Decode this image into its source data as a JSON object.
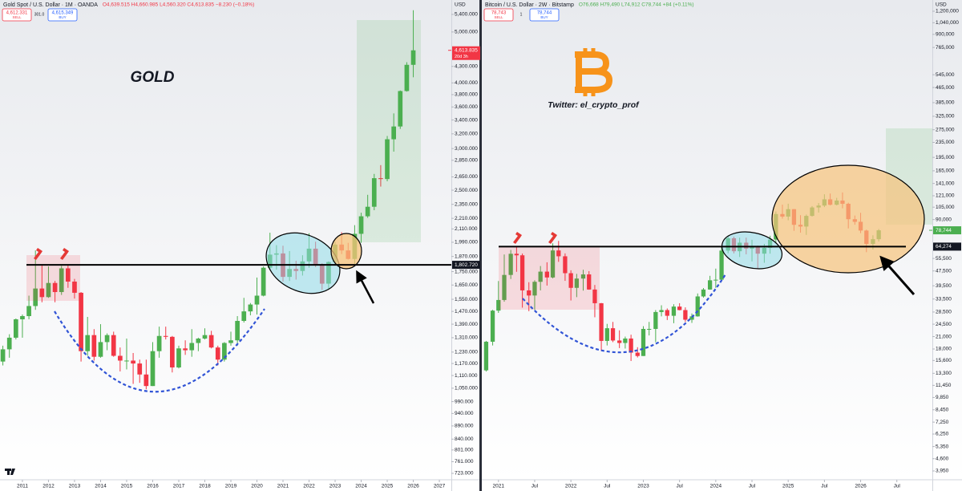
{
  "chart_data": [
    {
      "type": "candlestick",
      "title": "Gold Spot / U.S. Dollar · 1M · OANDA",
      "subtitle": "O4,639.515 H4,660.985 L4,560.320 C4,613.835 −8.230 (−0.18%)",
      "subtitle_color": "#f23645",
      "sell_price": "4,612.331",
      "sell_label": "SELL",
      "spread": "301.0",
      "buy_price": "4,615.349",
      "buy_label": "BUY",
      "currency": "USD",
      "annotation": "GOLD",
      "log_scale": true,
      "grid": false,
      "up_color": "#4caf50",
      "down_color": "#f23645",
      "xlim": [
        2010.14,
        2027.46
      ],
      "xticks": [
        2011,
        2012,
        2013,
        2014,
        2015,
        2016,
        2017,
        2018,
        2019,
        2020,
        2021,
        2022,
        2023,
        2024,
        2025,
        2026,
        2027
      ],
      "ylim": [
        703,
        5752
      ],
      "yticks": [
        {
          "value": 5400,
          "label": "5,400.000"
        },
        {
          "value": 5000,
          "label": "5,000.000"
        },
        {
          "value": 4300,
          "label": "4,300.000"
        },
        {
          "value": 4000,
          "label": "4,000.000"
        },
        {
          "value": 3800,
          "label": "3,800.000"
        },
        {
          "value": 3600,
          "label": "3,600.000"
        },
        {
          "value": 3400,
          "label": "3,400.000"
        },
        {
          "value": 3200,
          "label": "3,200.000"
        },
        {
          "value": 3000,
          "label": "3,000.000"
        },
        {
          "value": 2850,
          "label": "2,850.000"
        },
        {
          "value": 2650,
          "label": "2,650.000"
        },
        {
          "value": 2500,
          "label": "2,500.000"
        },
        {
          "value": 2350,
          "label": "2,350.000"
        },
        {
          "value": 2210,
          "label": "2,210.000"
        },
        {
          "value": 2110,
          "label": "2,110.000"
        },
        {
          "value": 1990,
          "label": "1,990.000"
        },
        {
          "value": 1870,
          "label": "1,870.000"
        },
        {
          "value": 1750,
          "label": "1,750.000"
        },
        {
          "value": 1650,
          "label": "1,650.000"
        },
        {
          "value": 1550,
          "label": "1,550.000"
        },
        {
          "value": 1470,
          "label": "1,470.000"
        },
        {
          "value": 1390,
          "label": "1,390.000"
        },
        {
          "value": 1310,
          "label": "1,310.000"
        },
        {
          "value": 1230,
          "label": "1,230.000"
        },
        {
          "value": 1170,
          "label": "1,170.000"
        },
        {
          "value": 1110,
          "label": "1,110.000"
        },
        {
          "value": 1050,
          "label": "1,050.000"
        },
        {
          "value": 990,
          "label": "990.000"
        },
        {
          "value": 940,
          "label": "940.000"
        },
        {
          "value": 890,
          "label": "890.000"
        },
        {
          "value": 840,
          "label": "840.000"
        },
        {
          "value": 801,
          "label": "801.000"
        },
        {
          "value": 761,
          "label": "761.000"
        },
        {
          "value": 723,
          "label": "723.000"
        }
      ],
      "hline": {
        "value": 1802.72,
        "label": "1,802.720"
      },
      "last_price": {
        "value": 4613.835,
        "label": "4,613.835",
        "countdown": "20d 3h"
      },
      "x": [
        2010.25,
        2010.5,
        2010.75,
        2011,
        2011.25,
        2011.5,
        2011.75,
        2012,
        2012.25,
        2012.5,
        2012.75,
        2013,
        2013.25,
        2013.5,
        2013.75,
        2014,
        2014.25,
        2014.5,
        2014.75,
        2015,
        2015.25,
        2015.5,
        2015.75,
        2016,
        2016.25,
        2016.5,
        2016.75,
        2017,
        2017.25,
        2017.5,
        2017.75,
        2018,
        2018.25,
        2018.5,
        2018.75,
        2019,
        2019.25,
        2019.5,
        2019.75,
        2020,
        2020.25,
        2020.5,
        2020.75,
        2021,
        2021.25,
        2021.5,
        2021.75,
        2022,
        2022.25,
        2022.5,
        2022.75,
        2023,
        2023.25,
        2023.5,
        2023.75,
        2024,
        2024.25,
        2024.5,
        2024.75,
        2025,
        2025.25,
        2025.5,
        2025.75,
        2026
      ],
      "open": [
        1180,
        1245,
        1310,
        1420,
        1440,
        1505,
        1625,
        1565,
        1665,
        1600,
        1775,
        1675,
        1595,
        1235,
        1325,
        1205,
        1285,
        1325,
        1210,
        1185,
        1185,
        1170,
        1115,
        1060,
        1235,
        1320,
        1315,
        1150,
        1250,
        1240,
        1280,
        1305,
        1325,
        1255,
        1190,
        1280,
        1295,
        1410,
        1470,
        1515,
        1575,
        1780,
        1885,
        1895,
        1710,
        1770,
        1755,
        1830,
        1935,
        1805,
        1660,
        1825,
        1970,
        1920,
        1850,
        2065,
        2230,
        2325,
        2635,
        2625,
        3125,
        3305,
        3860,
        4330
      ],
      "high": [
        1265,
        1330,
        1425,
        1450,
        1575,
        1920,
        1800,
        1790,
        1680,
        1795,
        1800,
        1695,
        1600,
        1435,
        1360,
        1390,
        1335,
        1345,
        1255,
        1305,
        1225,
        1190,
        1190,
        1285,
        1375,
        1375,
        1320,
        1265,
        1295,
        1360,
        1310,
        1365,
        1350,
        1265,
        1285,
        1345,
        1440,
        1560,
        1525,
        1705,
        1790,
        2075,
        1965,
        1960,
        1915,
        1835,
        1880,
        2070,
        1995,
        1815,
        1830,
        1995,
        2080,
        1985,
        2145,
        2265,
        2450,
        2685,
        2790,
        3170,
        3500,
        3870,
        4380,
        5500
      ],
      "low": [
        1160,
        1200,
        1300,
        1310,
        1420,
        1480,
        1530,
        1560,
        1530,
        1580,
        1630,
        1555,
        1180,
        1210,
        1185,
        1200,
        1240,
        1205,
        1130,
        1140,
        1070,
        1075,
        1045,
        1060,
        1200,
        1300,
        1125,
        1145,
        1215,
        1205,
        1235,
        1300,
        1250,
        1160,
        1180,
        1265,
        1265,
        1400,
        1445,
        1450,
        1570,
        1760,
        1765,
        1675,
        1680,
        1690,
        1720,
        1780,
        1785,
        1615,
        1620,
        1805,
        1890,
        1845,
        1810,
        1985,
        2215,
        2290,
        2540,
        2600,
        2960,
        3270,
        3850,
        4100
      ],
      "close": [
        1245,
        1310,
        1420,
        1440,
        1505,
        1625,
        1565,
        1665,
        1600,
        1775,
        1675,
        1595,
        1235,
        1325,
        1205,
        1285,
        1325,
        1210,
        1185,
        1185,
        1170,
        1115,
        1060,
        1235,
        1320,
        1315,
        1150,
        1250,
        1240,
        1280,
        1305,
        1325,
        1255,
        1190,
        1280,
        1295,
        1410,
        1470,
        1515,
        1575,
        1780,
        1885,
        1895,
        1710,
        1770,
        1755,
        1830,
        1935,
        1805,
        1660,
        1825,
        1970,
        1920,
        1850,
        2065,
        2230,
        2325,
        2635,
        2625,
        3125,
        3305,
        3860,
        4330,
        4614
      ]
    },
    {
      "type": "candlestick",
      "title": "Bitcoin / U.S. Dollar · 2W · Bitstamp",
      "subtitle": "O76,668 H79,490 L74,912 C78,744 +84 (+0.11%)",
      "subtitle_color": "#4caf50",
      "sell_price": "78,743",
      "sell_label": "SELL",
      "spread": "1",
      "buy_price": "78,744",
      "buy_label": "BUY",
      "currency": "USD",
      "annotation": "Twitter: el_crypto_prof",
      "log_scale": true,
      "grid": false,
      "up_color": "#4caf50",
      "down_color": "#f23645",
      "xlim": [
        2020.77,
        2026.99
      ],
      "xticks": [
        2021,
        {
          "value": 2021.5,
          "label": "Jul"
        },
        2022,
        {
          "value": 2022.5,
          "label": "Jul"
        },
        2023,
        {
          "value": 2023.5,
          "label": "Jul"
        },
        2024,
        {
          "value": 2024.5,
          "label": "Jul"
        },
        2025,
        {
          "value": 2025.5,
          "label": "Jul"
        },
        2026,
        {
          "value": 2026.5,
          "label": "Jul"
        }
      ],
      "ylim": [
        3540,
        1380000
      ],
      "yticks": [
        {
          "value": 1200000,
          "label": "1,200,000"
        },
        {
          "value": 1040000,
          "label": "1,040,000"
        },
        {
          "value": 900000,
          "label": "900,000"
        },
        {
          "value": 765000,
          "label": "765,000"
        },
        {
          "value": 545000,
          "label": "545,000"
        },
        {
          "value": 465000,
          "label": "465,000"
        },
        {
          "value": 385000,
          "label": "385,000"
        },
        {
          "value": 325000,
          "label": "325,000"
        },
        {
          "value": 275000,
          "label": "275,000"
        },
        {
          "value": 235000,
          "label": "235,000"
        },
        {
          "value": 195000,
          "label": "195,000"
        },
        {
          "value": 165000,
          "label": "165,000"
        },
        {
          "value": 141000,
          "label": "141,000"
        },
        {
          "value": 121000,
          "label": "121,000"
        },
        {
          "value": 105000,
          "label": "105,000"
        },
        {
          "value": 90000,
          "label": "90,000"
        },
        {
          "value": 55500,
          "label": "55,500"
        },
        {
          "value": 47500,
          "label": "47,500"
        },
        {
          "value": 39500,
          "label": "39,500"
        },
        {
          "value": 33500,
          "label": "33,500"
        },
        {
          "value": 28500,
          "label": "28,500"
        },
        {
          "value": 24500,
          "label": "24,500"
        },
        {
          "value": 21000,
          "label": "21,000"
        },
        {
          "value": 18000,
          "label": "18,000"
        },
        {
          "value": 15600,
          "label": "15,600"
        },
        {
          "value": 13300,
          "label": "13,300"
        },
        {
          "value": 11450,
          "label": "11,450"
        },
        {
          "value": 9850,
          "label": "9,850"
        },
        {
          "value": 8450,
          "label": "8,450"
        },
        {
          "value": 7250,
          "label": "7,250"
        },
        {
          "value": 6250,
          "label": "6,250"
        },
        {
          "value": 5350,
          "label": "5,350"
        },
        {
          "value": 4600,
          "label": "4,600"
        },
        {
          "value": 3950,
          "label": "3,950"
        }
      ],
      "hline": {
        "value": 64274,
        "label": "64,274"
      },
      "last_price": {
        "value": 78744,
        "label": "78,744"
      },
      "x": [
        2020.83,
        2020.92,
        2021,
        2021.08,
        2021.17,
        2021.25,
        2021.33,
        2021.42,
        2021.5,
        2021.58,
        2021.67,
        2021.75,
        2021.83,
        2021.92,
        2022,
        2022.08,
        2022.17,
        2022.25,
        2022.33,
        2022.42,
        2022.5,
        2022.58,
        2022.67,
        2022.75,
        2022.83,
        2022.92,
        2023,
        2023.08,
        2023.17,
        2023.25,
        2023.33,
        2023.42,
        2023.5,
        2023.58,
        2023.67,
        2023.75,
        2023.83,
        2023.92,
        2024,
        2024.08,
        2024.17,
        2024.25,
        2024.33,
        2024.42,
        2024.5,
        2024.58,
        2024.67,
        2024.75,
        2024.83,
        2024.92,
        2025,
        2025.08,
        2025.17,
        2025.25,
        2025.33,
        2025.42,
        2025.5,
        2025.58,
        2025.67,
        2025.75,
        2025.83,
        2025.92,
        2026,
        2026.08,
        2026.17,
        2026.25
      ],
      "open": [
        13800,
        19700,
        29000,
        33100,
        45200,
        58800,
        57700,
        37300,
        35000,
        41500,
        47100,
        43800,
        61300,
        57000,
        46200,
        38500,
        43200,
        45500,
        37700,
        31800,
        19900,
        23300,
        20000,
        19400,
        20500,
        17200,
        16500,
        23100,
        23100,
        28500,
        29200,
        27200,
        30500,
        29200,
        25900,
        27000,
        34600,
        37700,
        42300,
        42600,
        61200,
        71300,
        60700,
        67500,
        62700,
        64600,
        58900,
        63300,
        70200,
        96400,
        93400,
        102400,
        84300,
        82500,
        94200,
        104600,
        107100,
        115700,
        108200,
        114000,
        109500,
        90400,
        87500,
        78500,
        66500,
        70500
      ],
      "high": [
        19900,
        29300,
        41900,
        58300,
        61700,
        64800,
        59000,
        41300,
        42300,
        50500,
        52900,
        67000,
        69000,
        59100,
        47900,
        45800,
        48200,
        47400,
        39900,
        31900,
        24600,
        25200,
        22700,
        21000,
        21500,
        18400,
        23900,
        25200,
        29200,
        31000,
        29800,
        31400,
        31800,
        30200,
        28000,
        35900,
        38400,
        44700,
        48900,
        64000,
        73800,
        72800,
        71900,
        71900,
        70000,
        65100,
        66500,
        73600,
        99600,
        108300,
        109600,
        102500,
        95000,
        95800,
        106400,
        110500,
        123200,
        124400,
        117900,
        126100,
        111000,
        94600,
        97900,
        79400,
        74000,
        80000
      ],
      "low": [
        13600,
        18800,
        28200,
        32400,
        43000,
        47000,
        30100,
        28800,
        29300,
        37300,
        39600,
        43300,
        53200,
        42000,
        32900,
        34300,
        37200,
        37600,
        26700,
        17600,
        18800,
        19600,
        18200,
        18100,
        15500,
        16200,
        16500,
        21300,
        19600,
        27000,
        25800,
        24800,
        29100,
        25200,
        24900,
        26900,
        34100,
        37600,
        38500,
        41900,
        59200,
        59100,
        56500,
        58400,
        53500,
        49000,
        52600,
        58900,
        66800,
        91000,
        89200,
        78200,
        76500,
        74400,
        93400,
        98200,
        105100,
        107300,
        107300,
        103500,
        80600,
        84400,
        76000,
        60000,
        62000,
        68500
      ],
      "close": [
        19700,
        29000,
        33100,
        45200,
        58800,
        57700,
        37300,
        35000,
        41500,
        47100,
        43800,
        61300,
        57000,
        46200,
        38500,
        43200,
        45500,
        37700,
        31800,
        19900,
        23300,
        20000,
        19400,
        20500,
        17200,
        16500,
        23100,
        23100,
        28500,
        29200,
        27200,
        30500,
        29200,
        25900,
        27000,
        34600,
        37700,
        42300,
        42600,
        61200,
        71300,
        60700,
        67500,
        62700,
        64600,
        58900,
        63300,
        70200,
        96400,
        93400,
        102400,
        84300,
        82500,
        94200,
        104600,
        107100,
        115700,
        108200,
        114000,
        109500,
        90400,
        87500,
        78500,
        66500,
        70500,
        78744
      ]
    }
  ]
}
